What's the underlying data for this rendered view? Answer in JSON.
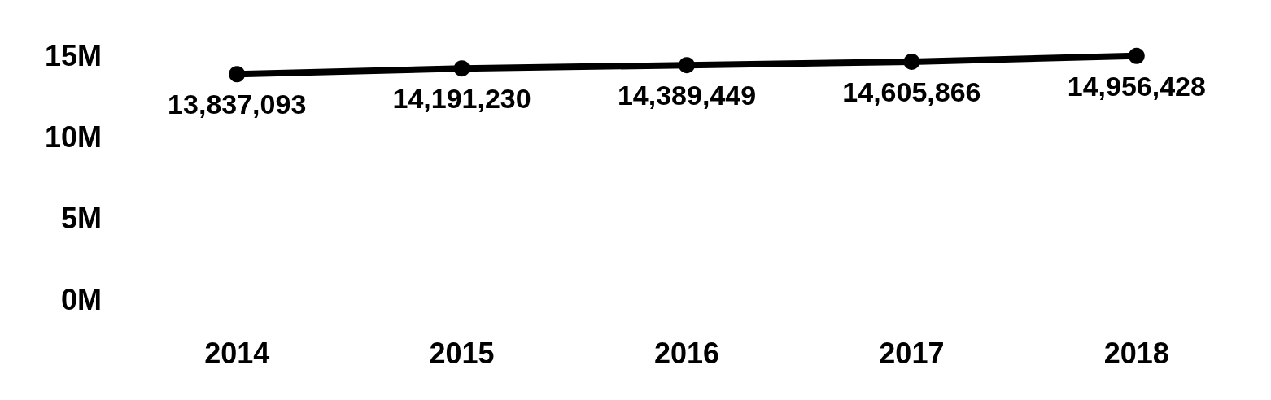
{
  "chart_data": {
    "type": "line",
    "categories": [
      "2014",
      "2015",
      "2016",
      "2017",
      "2018"
    ],
    "series": [
      {
        "color": "#000000",
        "values": [
          13837093,
          14191230,
          14389449,
          14605866,
          14956428
        ],
        "value_labels": [
          "13,837,093",
          "14,191,230",
          "14,389,449",
          "14,605,866",
          "14,956,428"
        ]
      }
    ],
    "ylim": [
      0,
      15000000
    ],
    "yticks": [
      {
        "value": 0,
        "label": "0M"
      },
      {
        "value": 5000000,
        "label": "5M"
      },
      {
        "value": 10000000,
        "label": "10M"
      },
      {
        "value": 15000000,
        "label": "15M"
      }
    ],
    "grid": false,
    "marker": "circle",
    "line_style": "solid"
  }
}
